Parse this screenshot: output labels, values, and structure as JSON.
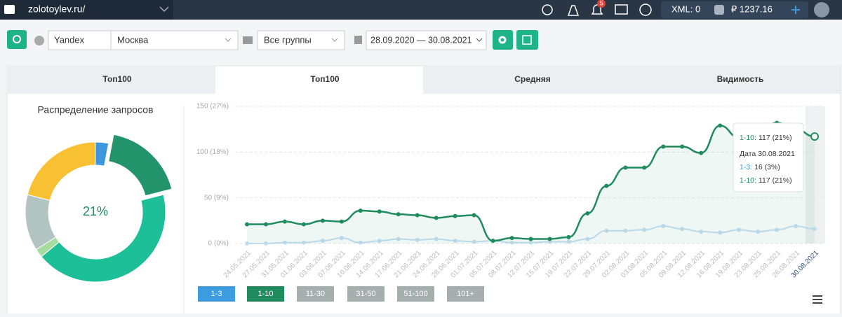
{
  "header": {
    "site": "zolotoylev.ru/",
    "badge": "5",
    "xml": "XML: 0",
    "balance": "₽ 1237.16"
  },
  "toolbar": {
    "engine": "Yandex",
    "region": "Москва",
    "group": "Все группы",
    "dates": "28.09.2020 — 30.08.2021"
  },
  "tabs": [
    "Топ100",
    "Топ100",
    "Средняя",
    "Видимость"
  ],
  "tooltip": {
    "rows": [
      [
        "1-10:",
        "117 (21%)"
      ],
      [
        "Дата",
        "30.08.2021"
      ],
      [
        "1-3:",
        "16 (3%)"
      ],
      [
        "1-10:",
        "117 (21%)"
      ]
    ]
  },
  "buttons": [
    {
      "label": "1-3",
      "color": "#3d9be0"
    },
    {
      "label": "1-10",
      "color": "#1f8b5f"
    },
    {
      "label": "11-30",
      "color": "#a4afae"
    },
    {
      "label": "31-50",
      "color": "#a4afae"
    },
    {
      "label": "51-100",
      "color": "#a4afae"
    },
    {
      "label": "101+",
      "color": "#a4afae"
    }
  ],
  "chart_data": [
    {
      "type": "pie",
      "title": "Распределение запросов",
      "center_label": "21%",
      "values": [
        3,
        18,
        43,
        2,
        13,
        21
      ],
      "colors": [
        "#3a96dd",
        "#22936a",
        "#1cbf98",
        "#a6dc9e",
        "#b1c4c2",
        "#f8c033"
      ],
      "exploded": 1
    },
    {
      "type": "line",
      "ylim": [
        0,
        150
      ],
      "yticks": [
        {
          "value": 0,
          "label": "0 (0%)"
        },
        {
          "value": 50,
          "label": "50 (9%)"
        },
        {
          "value": 100,
          "label": "100 (18%)"
        },
        {
          "value": 150,
          "label": "150 (27%)"
        }
      ],
      "grid": true,
      "x": [
        "24.05.2021",
        "27.05.2021",
        "31.05.2021",
        "01.06.2021",
        "03.06.2021",
        "07.06.2021",
        "10.06.2021",
        "14.06.2021",
        "17.06.2021",
        "21.06.2021",
        "24.06.2021",
        "28.06.2021",
        "01.07.2021",
        "05.07.2021",
        "08.07.2021",
        "12.07.2021",
        "15.07.2021",
        "19.07.2021",
        "22.07.2021",
        "29.07.2021",
        "02.08.2021",
        "03.08.2021",
        "05.08.2021",
        "09.08.2021",
        "12.08.2021",
        "16.08.2021",
        "19.08.2021",
        "23.08.2021",
        "25.08.2021",
        "26.08.2021",
        "30.08.2021"
      ],
      "series": [
        {
          "name": "1-3",
          "color": "#c5def2",
          "values": [
            0,
            0,
            1,
            1,
            3,
            6,
            1,
            3,
            5,
            4,
            5,
            3,
            2,
            3,
            1,
            1,
            2,
            2,
            5,
            14,
            14,
            15,
            19,
            16,
            13,
            12,
            15,
            13,
            15,
            19,
            16
          ]
        },
        {
          "name": "1-10",
          "color": "#1f8b5f",
          "values": [
            21,
            21,
            24,
            21,
            25,
            24,
            36,
            35,
            32,
            31,
            28,
            30,
            31,
            3,
            6,
            5,
            5,
            7,
            33,
            63,
            83,
            83,
            106,
            106,
            99,
            129,
            116,
            122,
            132,
            125,
            117
          ]
        }
      ]
    }
  ]
}
